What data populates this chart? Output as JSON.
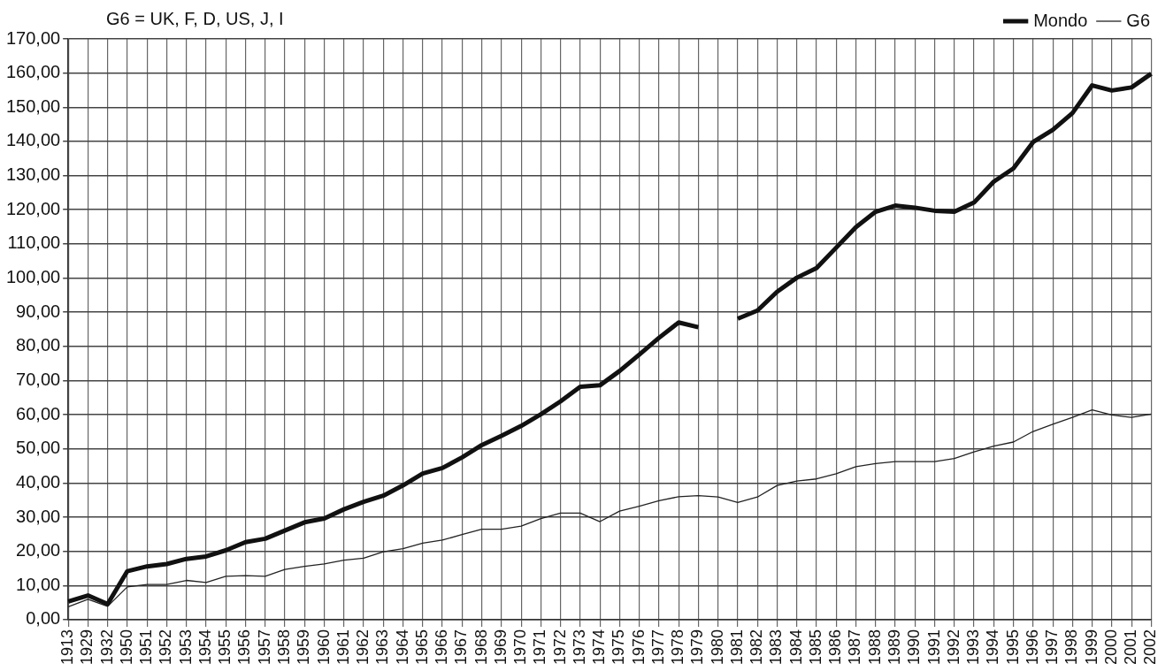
{
  "chart_data": {
    "type": "line",
    "annotations": [
      "G6 = UK, F, D, US, J, I"
    ],
    "categories": [
      "1913",
      "1929",
      "1932",
      "1950",
      "1951",
      "1952",
      "1953",
      "1954",
      "1955",
      "1956",
      "1957",
      "1958",
      "1959",
      "1960",
      "1961",
      "1962",
      "1963",
      "1964",
      "1965",
      "1966",
      "1967",
      "1968",
      "1969",
      "1970",
      "1971",
      "1972",
      "1973",
      "1974",
      "1975",
      "1976",
      "1977",
      "1978",
      "1979",
      "1980",
      "1981",
      "1982",
      "1983",
      "1984",
      "1985",
      "1986",
      "1987",
      "1988",
      "1989",
      "1990",
      "1991",
      "1992",
      "1993",
      "1994",
      "1995",
      "1996",
      "1997",
      "1998",
      "1999",
      "2000",
      "2001",
      "2002"
    ],
    "series": [
      {
        "name": "Mondo",
        "color": "#111111",
        "values": [
          5.3,
          7.1,
          4.6,
          14.2,
          15.6,
          16.3,
          17.8,
          18.5,
          20.3,
          22.7,
          23.7,
          26.1,
          28.5,
          29.6,
          32.3,
          34.5,
          36.3,
          39.3,
          42.8,
          44.4,
          47.5,
          51.1,
          53.8,
          56.7,
          60.1,
          63.9,
          68.2,
          68.6,
          72.8,
          77.6,
          82.5,
          87.0,
          85.6,
          null,
          88.1,
          90.5,
          96.0,
          100.1,
          102.9,
          108.9,
          114.9,
          119.4,
          121.2,
          120.6,
          119.7,
          119.4,
          122.1,
          128.2,
          132.1,
          139.8,
          143.4,
          148.3,
          156.4,
          154.9,
          155.8,
          159.8
        ]
      },
      {
        "name": "G6",
        "color": "#222222",
        "values": [
          3.8,
          6.0,
          3.9,
          9.6,
          10.3,
          10.3,
          11.5,
          10.9,
          12.7,
          12.9,
          12.7,
          14.7,
          15.6,
          16.3,
          17.4,
          18.0,
          19.9,
          20.8,
          22.4,
          23.3,
          24.9,
          26.5,
          26.5,
          27.4,
          29.6,
          31.2,
          31.2,
          28.7,
          31.8,
          33.2,
          34.8,
          36.0,
          36.3,
          35.9,
          34.3,
          35.9,
          39.3,
          40.6,
          41.2,
          42.7,
          44.8,
          45.7,
          46.3,
          46.3,
          46.3,
          47.2,
          49.1,
          50.8,
          52.0,
          55.1,
          57.2,
          59.2,
          61.4,
          59.9,
          59.2,
          60.2
        ]
      }
    ],
    "ylim": [
      0,
      170
    ],
    "yticks": [
      {
        "value": 0,
        "label": "0,00"
      },
      {
        "value": 10,
        "label": "10,00"
      },
      {
        "value": 20,
        "label": "20,00"
      },
      {
        "value": 30,
        "label": "30,00"
      },
      {
        "value": 40,
        "label": "40,00"
      },
      {
        "value": 50,
        "label": "50,00"
      },
      {
        "value": 60,
        "label": "60,00"
      },
      {
        "value": 70,
        "label": "70,00"
      },
      {
        "value": 80,
        "label": "80,00"
      },
      {
        "value": 90,
        "label": "90,00"
      },
      {
        "value": 100,
        "label": "100,00"
      },
      {
        "value": 110,
        "label": "110,00"
      },
      {
        "value": 120,
        "label": "120,00"
      },
      {
        "value": 130,
        "label": "130,00"
      },
      {
        "value": 140,
        "label": "140,00"
      },
      {
        "value": 150,
        "label": "150,00"
      },
      {
        "value": 160,
        "label": "160,00"
      },
      {
        "value": 170,
        "label": "170,00"
      }
    ],
    "grid": true,
    "legend": "top",
    "marker": "none",
    "line_style": "solid"
  }
}
